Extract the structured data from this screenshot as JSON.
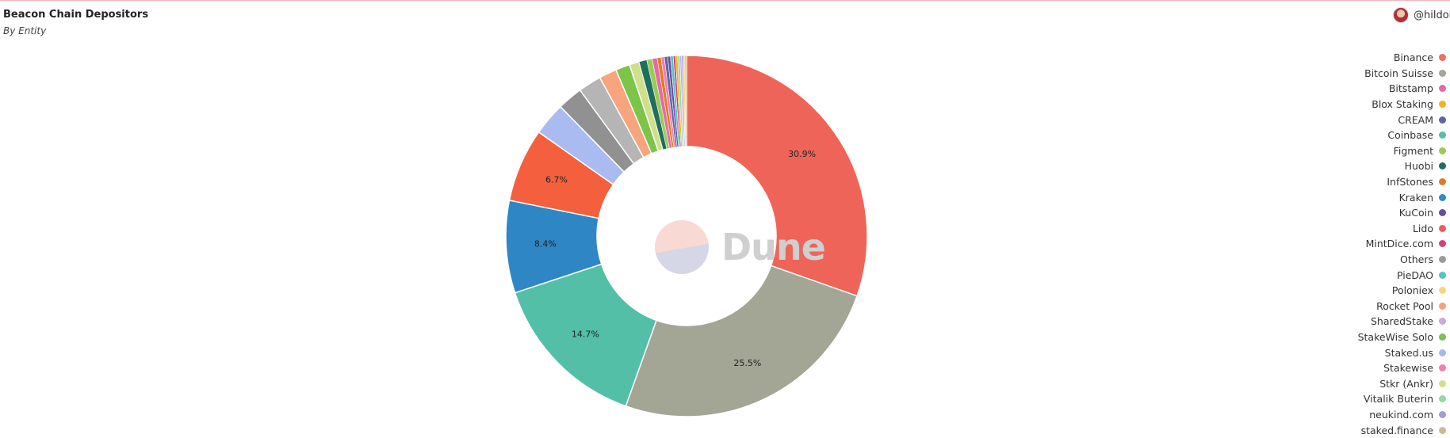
{
  "header": {
    "title": "Beacon Chain Depositors",
    "subtitle": "By Entity",
    "user": "@hildol"
  },
  "watermark": {
    "text": "Dune"
  },
  "colors": {
    "accent_line": "#f3b6c0"
  },
  "legend": [
    {
      "name": "Binance",
      "color": "#f06f5d"
    },
    {
      "name": "Bitcoin Suisse",
      "color": "#a3a595"
    },
    {
      "name": "Bitstamp",
      "color": "#e46aa4"
    },
    {
      "name": "Blox Staking",
      "color": "#f6b21b"
    },
    {
      "name": "CREAM",
      "color": "#5a67ac"
    },
    {
      "name": "Coinbase",
      "color": "#53c0a8"
    },
    {
      "name": "Figment",
      "color": "#99cc55"
    },
    {
      "name": "Huobi",
      "color": "#1f6e5e"
    },
    {
      "name": "InfStones",
      "color": "#e07b2a"
    },
    {
      "name": "Kraken",
      "color": "#2f8ac8"
    },
    {
      "name": "KuCoin",
      "color": "#6a4ba0"
    },
    {
      "name": "Lido",
      "color": "#ef5b5b"
    },
    {
      "name": "MintDice.com",
      "color": "#d63d7c"
    },
    {
      "name": "Others",
      "color": "#9a9a9a"
    },
    {
      "name": "PieDAO",
      "color": "#4dc7c5"
    },
    {
      "name": "Poloniex",
      "color": "#f7d77a"
    },
    {
      "name": "Rocket Pool",
      "color": "#f79e7e"
    },
    {
      "name": "SharedStake",
      "color": "#c9a9e0"
    },
    {
      "name": "StakeWise Solo",
      "color": "#7fbf55"
    },
    {
      "name": "Staked.us",
      "color": "#a7b8ef"
    },
    {
      "name": "Stakewise",
      "color": "#f27fa7"
    },
    {
      "name": "Stkr (Ankr)",
      "color": "#cfe08a"
    },
    {
      "name": "Vitalik Buterin",
      "color": "#8fdba0"
    },
    {
      "name": "neukind.com",
      "color": "#a89ad8"
    },
    {
      "name": "staked.finance",
      "color": "#d0b890"
    }
  ],
  "chart_data": {
    "type": "pie",
    "donut": true,
    "start": "top, clockwise",
    "slices": [
      {
        "label": "Binance",
        "value": 30.9,
        "color": "#ef6459",
        "data_label": "30.9%"
      },
      {
        "label": "Bitcoin Suisse",
        "value": 25.5,
        "color": "#a3a595",
        "data_label": "25.5%"
      },
      {
        "label": "Coinbase",
        "value": 14.7,
        "color": "#53bfa7",
        "data_label": "14.7%"
      },
      {
        "label": "Kraken",
        "value": 8.4,
        "color": "#2e86c5",
        "data_label": "8.4%"
      },
      {
        "label": "Lido",
        "value": 6.7,
        "color": "#f45f3e",
        "data_label": "6.7%"
      },
      {
        "label": "Staked.us",
        "value": 3.0,
        "color": "#a9bbf0",
        "data_label": ""
      },
      {
        "label": "Others",
        "value": 2.3,
        "color": "#919191",
        "data_label": ""
      },
      {
        "label": "Others",
        "value": 2.1,
        "color": "#b5b5b5",
        "data_label": ""
      },
      {
        "label": "Rocket Pool",
        "value": 1.6,
        "color": "#f7a47f",
        "data_label": ""
      },
      {
        "label": "StakeWise Solo",
        "value": 1.3,
        "color": "#7cc548",
        "data_label": ""
      },
      {
        "label": "Stkr (Ankr)",
        "value": 0.9,
        "color": "#cfe08a",
        "data_label": ""
      },
      {
        "label": "Huobi",
        "value": 0.7,
        "color": "#1f6e5e",
        "data_label": ""
      },
      {
        "label": "Figment",
        "value": 0.5,
        "color": "#99cc55",
        "data_label": ""
      },
      {
        "label": "Bitstamp",
        "value": 0.45,
        "color": "#e46aa4",
        "data_label": ""
      },
      {
        "label": "InfStones",
        "value": 0.35,
        "color": "#e07b2a",
        "data_label": ""
      },
      {
        "label": "Stakewise",
        "value": 0.3,
        "color": "#f27fa7",
        "data_label": ""
      },
      {
        "label": "CREAM",
        "value": 0.3,
        "color": "#5a67ac",
        "data_label": ""
      },
      {
        "label": "KuCoin",
        "value": 0.25,
        "color": "#6a4ba0",
        "data_label": ""
      },
      {
        "label": "PieDAO",
        "value": 0.25,
        "color": "#4dc7c5",
        "data_label": ""
      },
      {
        "label": "MintDice.com",
        "value": 0.2,
        "color": "#d63d7c",
        "data_label": ""
      },
      {
        "label": "Blox Staking",
        "value": 0.2,
        "color": "#f6b21b",
        "data_label": ""
      },
      {
        "label": "Vitalik Buterin",
        "value": 0.2,
        "color": "#8fdba0",
        "data_label": ""
      },
      {
        "label": "SharedStake",
        "value": 0.15,
        "color": "#c9a9e0",
        "data_label": ""
      },
      {
        "label": "neukind.com",
        "value": 0.15,
        "color": "#a89ad8",
        "data_label": ""
      },
      {
        "label": "Poloniex",
        "value": 0.15,
        "color": "#f7d77a",
        "data_label": ""
      },
      {
        "label": "staked.finance",
        "value": 0.15,
        "color": "#d0b890",
        "data_label": ""
      }
    ]
  }
}
